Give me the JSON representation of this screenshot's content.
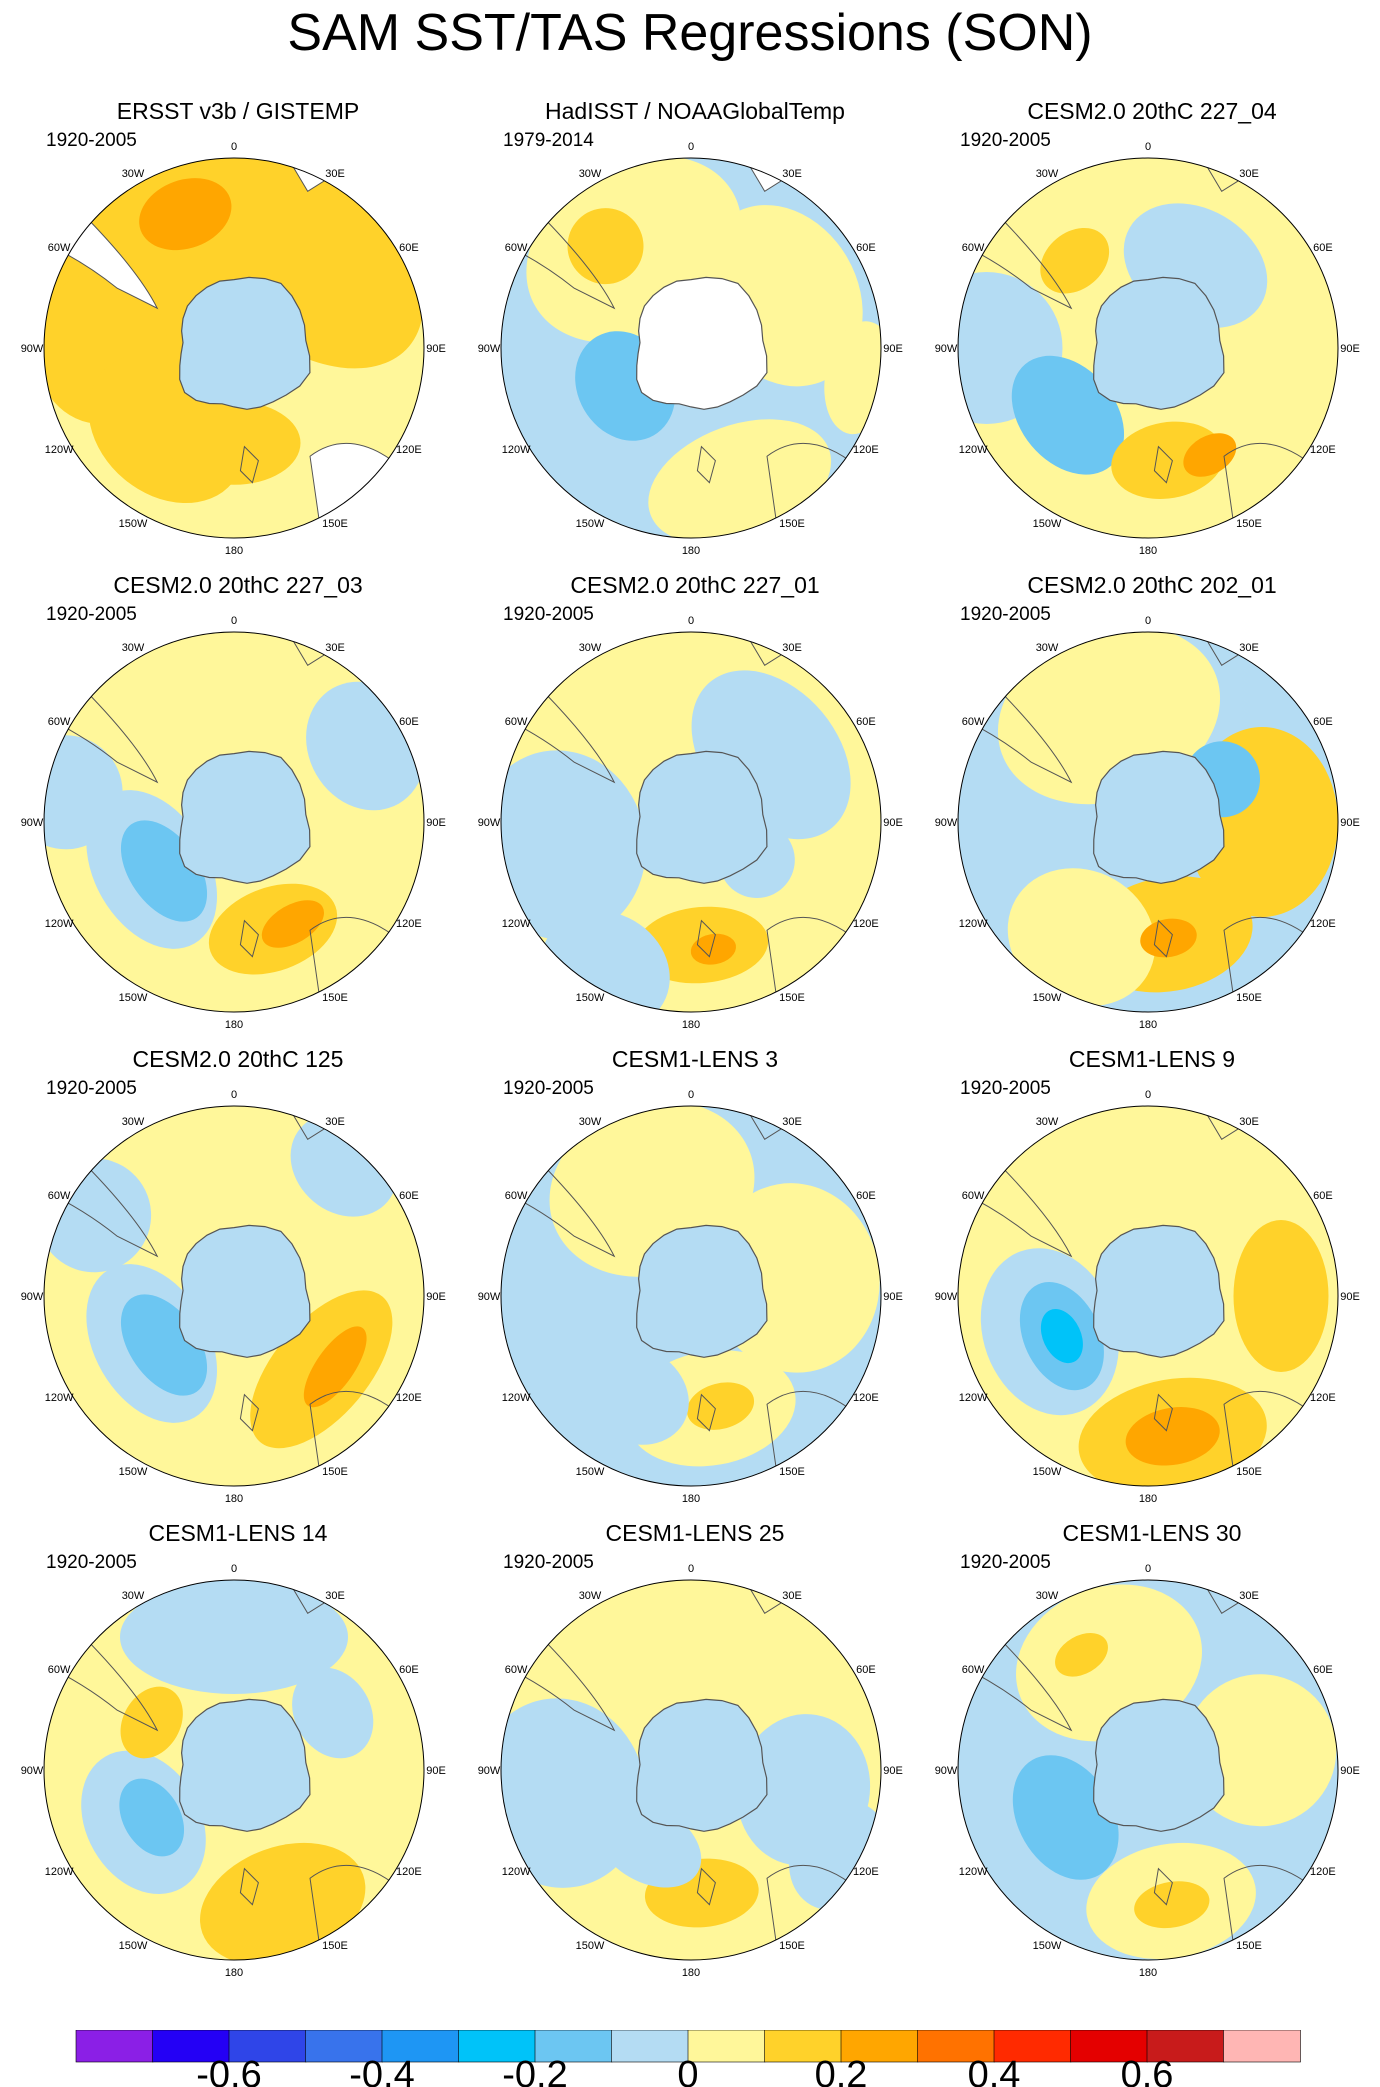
{
  "chart_data": {
    "type": "heatmap",
    "title": "SAM SST/TAS Regressions (SON)",
    "projection": "south polar stereographic",
    "longitude_labels": [
      "0",
      "30E",
      "60E",
      "90E",
      "120E",
      "150E",
      "180",
      "150W",
      "120W",
      "90W",
      "60W",
      "30W"
    ],
    "colorbar": {
      "levels": [
        -0.7,
        -0.6,
        -0.5,
        -0.4,
        -0.3,
        -0.2,
        -0.1,
        0,
        0.1,
        0.2,
        0.3,
        0.4,
        0.5,
        0.6,
        0.7
      ],
      "tick_labels": [
        "-0.6",
        "-0.4",
        "-0.2",
        "0",
        "0.2",
        "0.4",
        "0.6"
      ],
      "tick_values": [
        -0.6,
        -0.4,
        -0.2,
        0,
        0.2,
        0.4,
        0.6
      ],
      "colors": [
        "#8b1fe6",
        "#2400f5",
        "#2f45e8",
        "#3873ec",
        "#1e96f4",
        "#00c3f9",
        "#6cc6f2",
        "#b4dcf3",
        "#fff79a",
        "#ffd22a",
        "#ffa600",
        "#ff7200",
        "#ff2a00",
        "#e40000",
        "#c81b1b",
        "#ffb6b4"
      ]
    },
    "panels": [
      {
        "title": "ERSST v3b / GISTEMP",
        "period": "1920-2005"
      },
      {
        "title": "HadISST / NOAAGlobalTemp",
        "period": "1979-2014"
      },
      {
        "title": "CESM2.0 20thC 227_04",
        "period": "1920-2005"
      },
      {
        "title": "CESM2.0 20thC 227_03",
        "period": "1920-2005"
      },
      {
        "title": "CESM2.0 20thC 227_01",
        "period": "1920-2005"
      },
      {
        "title": "CESM2.0 20thC 202_01",
        "period": "1920-2005"
      },
      {
        "title": "CESM2.0 20thC 125",
        "period": "1920-2005"
      },
      {
        "title": "CESM1-LENS 3",
        "period": "1920-2005"
      },
      {
        "title": "CESM1-LENS 9",
        "period": "1920-2005"
      },
      {
        "title": "CESM1-LENS 14",
        "period": "1920-2005"
      },
      {
        "title": "CESM1-LENS 25",
        "period": "1920-2005"
      },
      {
        "title": "CESM1-LENS 30",
        "period": "1920-2005"
      }
    ]
  }
}
